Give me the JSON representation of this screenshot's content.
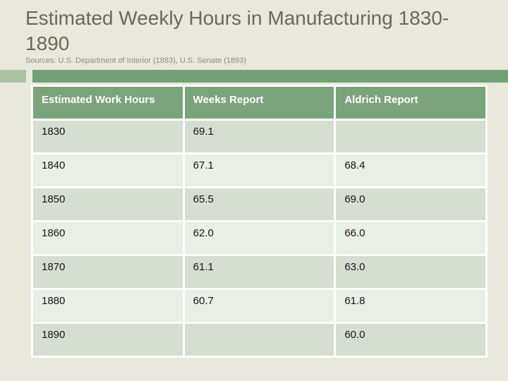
{
  "slide": {
    "title_line1": "Estimated Weekly Hours in Manufacturing 1830-",
    "title_line2": "1890",
    "title_full": "Estimated Weekly Hours in Manufacturing 1830-1890",
    "sources": "Sources: U.S. Department of Interior (1883), U.S. Senate (1893)"
  },
  "table": {
    "columns": [
      "Estimated Work Hours",
      "Weeks Report",
      "Aldrich Report"
    ],
    "rows": [
      [
        "1830",
        "69.1",
        ""
      ],
      [
        "1840",
        "67.1",
        "68.4"
      ],
      [
        "1850",
        "65.5",
        "69.0"
      ],
      [
        "1860",
        "62.0",
        "66.0"
      ],
      [
        "1870",
        "61.1",
        "63.0"
      ],
      [
        "1880",
        "60.7",
        "61.8"
      ],
      [
        "1890",
        "",
        "60.0"
      ]
    ]
  },
  "colors": {
    "background": "#e9e8dc",
    "title_text": "#69695a",
    "sources_text": "#8c8c82",
    "accent_band_light": "#abc4a5",
    "accent_band_dark": "#74a076",
    "table_header_bg": "#7ba47c",
    "table_header_text": "#ffffff",
    "row_dark_bg": "#d6ddd1",
    "row_light_bg": "#e9efe5",
    "cell_text": "#161616",
    "table_border": "#ffffff"
  }
}
